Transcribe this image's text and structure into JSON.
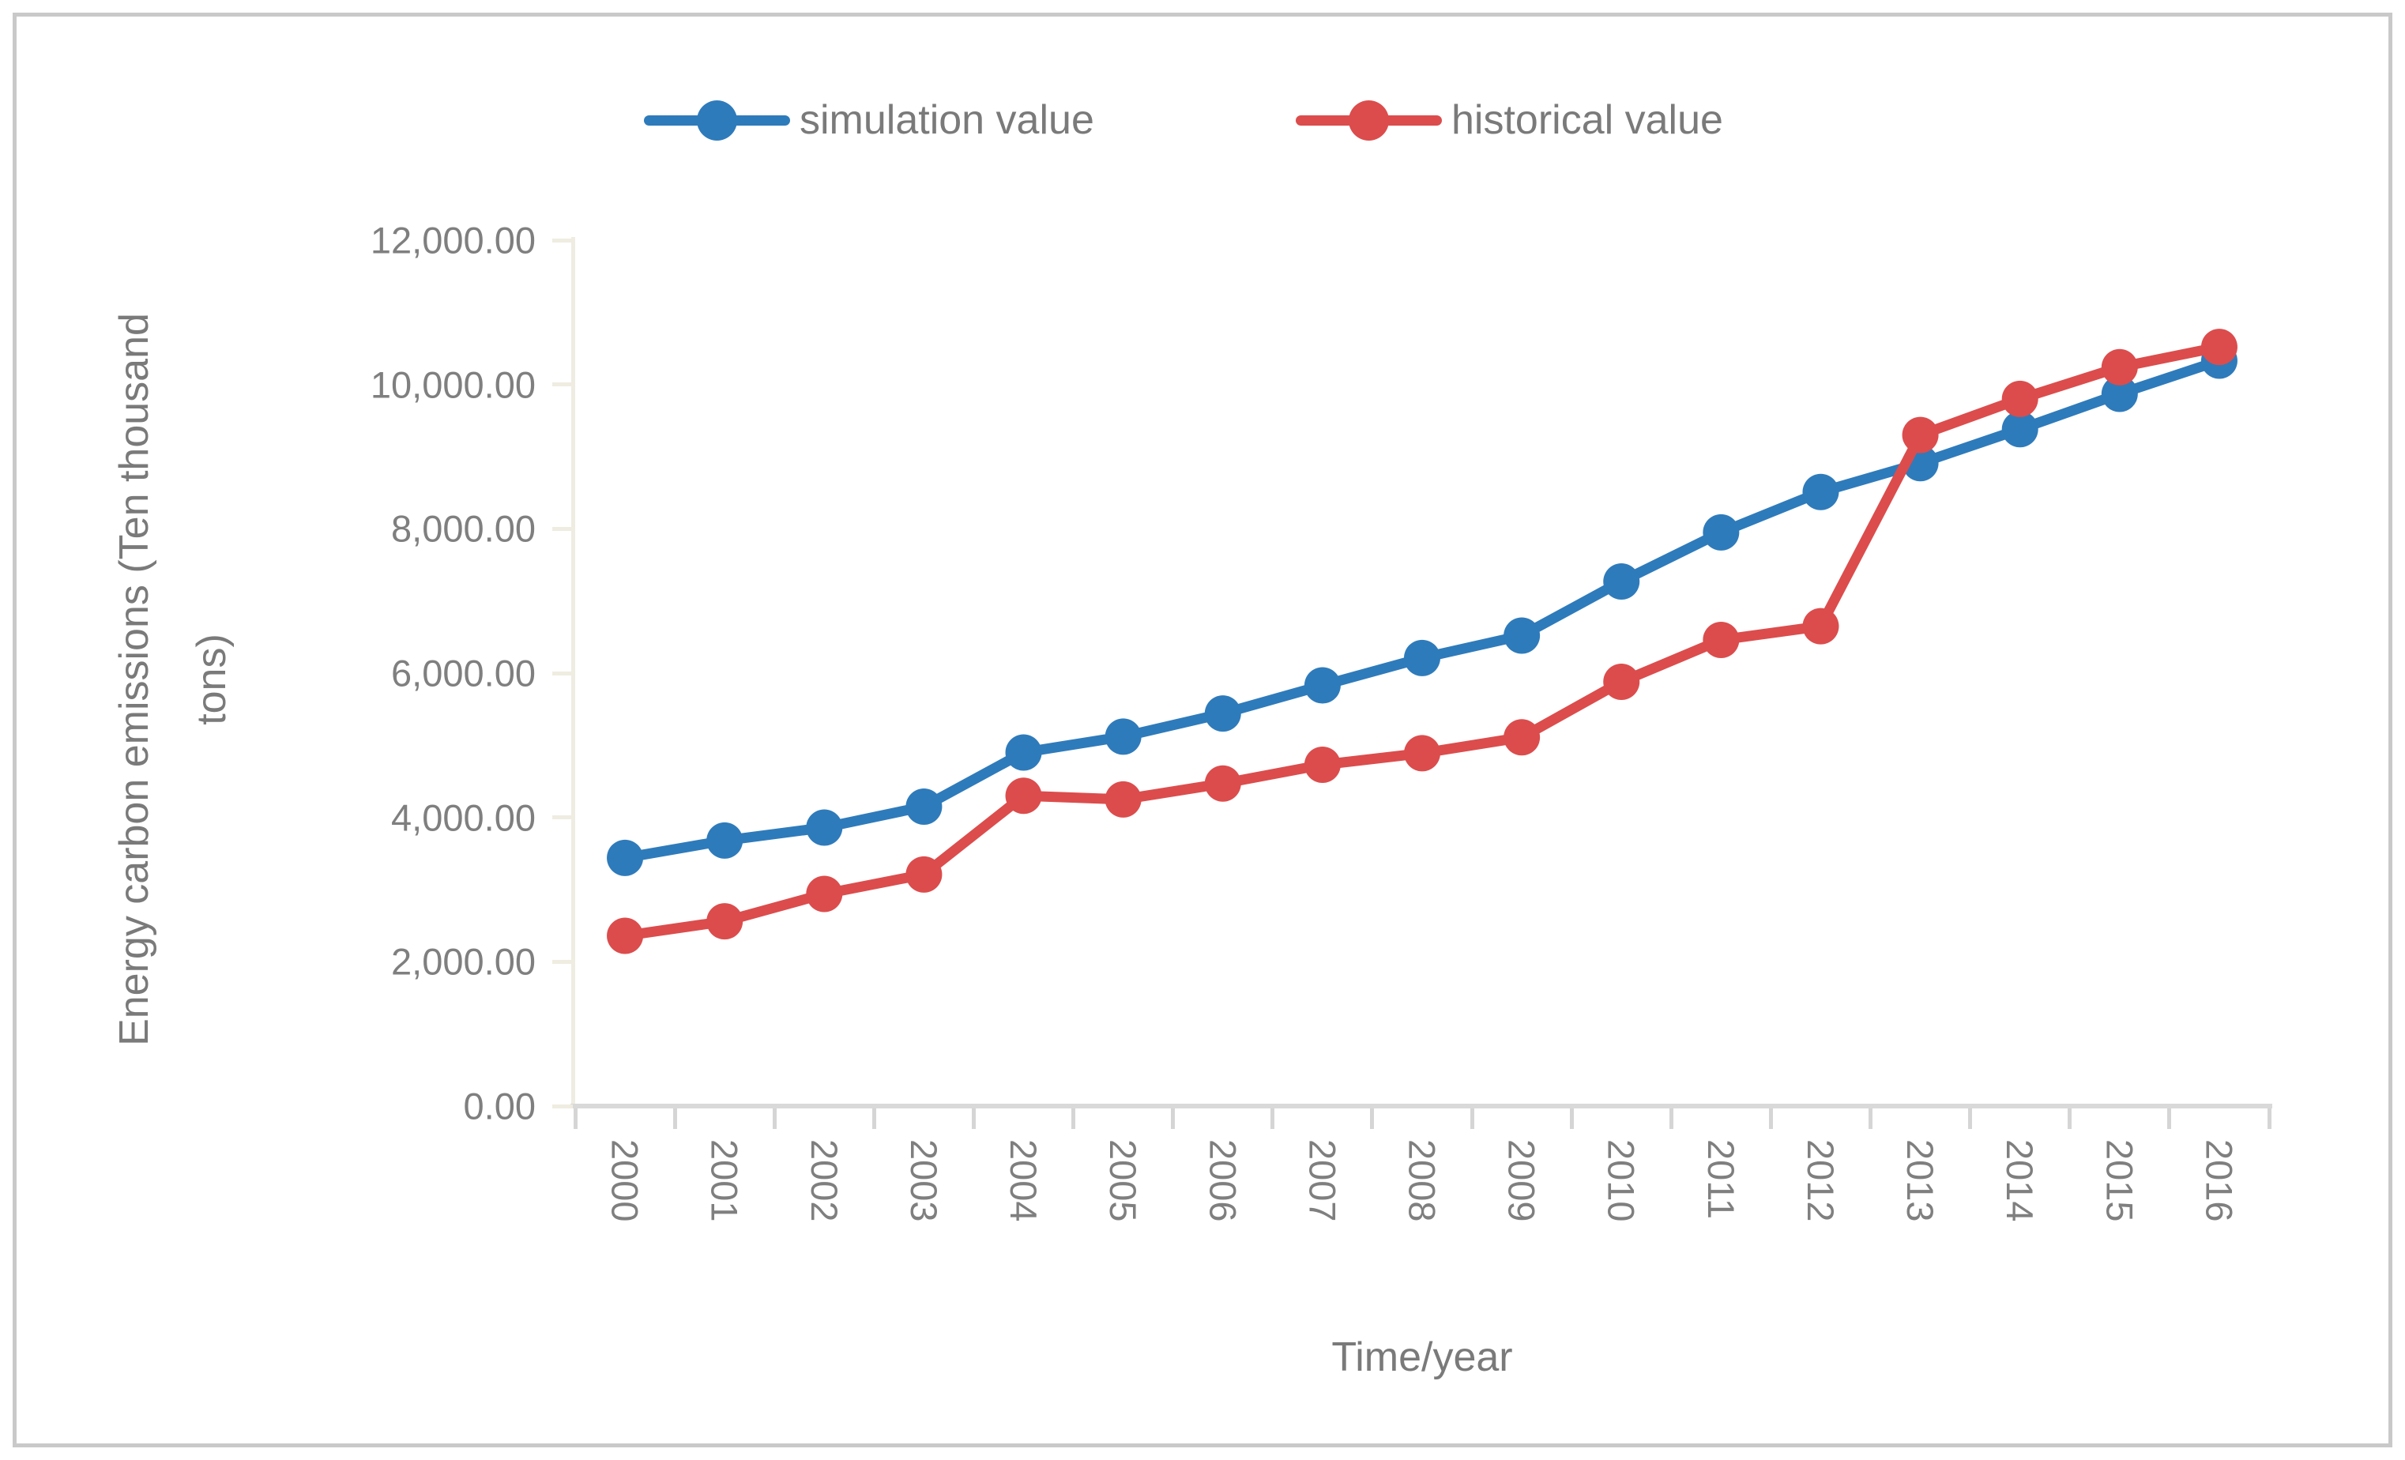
{
  "legend": {
    "items": [
      {
        "label": "simulation value",
        "color": "#2E7BBB"
      },
      {
        "label": "historical value",
        "color": "#DC4C4C"
      }
    ]
  },
  "axes": {
    "y_title_line1": "Energy carbon emissions (Ten thousand",
    "y_title_line2": "tons)",
    "x_title": "Time/year",
    "y_tick_labels": [
      "12,000.00",
      "10,000.00",
      "8,000.00",
      "6,000.00",
      "4,000.00",
      "2,000.00",
      "0.00"
    ]
  },
  "chart_data": {
    "type": "line",
    "title": "",
    "xlabel": "Time/year",
    "ylabel": "Energy carbon emissions (Ten thousand tons)",
    "ylim": [
      0,
      12000
    ],
    "y_tick_step": 2000,
    "grid": false,
    "legend_position": "top",
    "categories": [
      "2000",
      "2001",
      "2002",
      "2003",
      "2004",
      "2005",
      "2006",
      "2007",
      "2008",
      "2009",
      "2010",
      "2011",
      "2012",
      "2013",
      "2014",
      "2015",
      "2016"
    ],
    "series": [
      {
        "name": "simulation value",
        "color": "#2E7BBB",
        "values": [
          3440,
          3680,
          3860,
          4150,
          4900,
          5120,
          5440,
          5830,
          6210,
          6520,
          7270,
          7950,
          8510,
          8910,
          9380,
          9870,
          10330
        ]
      },
      {
        "name": "historical value",
        "color": "#DC4C4C",
        "values": [
          2360,
          2560,
          2940,
          3210,
          4300,
          4250,
          4470,
          4730,
          4890,
          5110,
          5880,
          6460,
          6650,
          9300,
          9800,
          10240,
          10520
        ]
      }
    ]
  }
}
